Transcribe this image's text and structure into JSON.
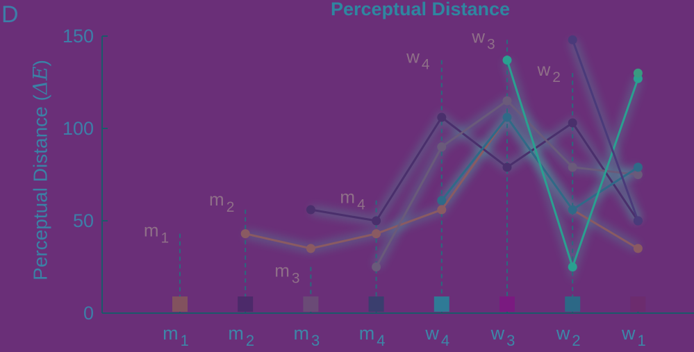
{
  "panel_letter": "D",
  "chart_data": {
    "type": "line",
    "title": "Perceptual Distance",
    "ylabel": "Perceptual Distance (ΔE)",
    "xlabel": "",
    "ylim": [
      0,
      150
    ],
    "yticks": [
      0,
      50,
      100,
      150
    ],
    "categories": [
      {
        "base": "m",
        "sub": "1"
      },
      {
        "base": "m",
        "sub": "2"
      },
      {
        "base": "m",
        "sub": "3"
      },
      {
        "base": "m",
        "sub": "4"
      },
      {
        "base": "w",
        "sub": "4"
      },
      {
        "base": "w",
        "sub": "3"
      },
      {
        "base": "w",
        "sub": "2"
      },
      {
        "base": "w",
        "sub": "1"
      }
    ],
    "category_marker_colors": [
      "#82525e",
      "#4c2a6a",
      "#6a4a76",
      "#3a3e6e",
      "#2f7a96",
      "#7a1a80",
      "#2c6886",
      "#6c2c6e"
    ],
    "series": [
      {
        "start": "m1",
        "color": "#8a5a62",
        "values": [
          null,
          43,
          35,
          43,
          56,
          106,
          56,
          35
        ]
      },
      {
        "start": "m2",
        "color": "#4a2f6c",
        "values": [
          null,
          null,
          56,
          50,
          106,
          79,
          103,
          50
        ]
      },
      {
        "start": "m3",
        "color": "#6a5a7a",
        "values": [
          null,
          null,
          null,
          25,
          90,
          115,
          79,
          75
        ]
      },
      {
        "start": "m4",
        "color": "#2f6a88",
        "values": [
          null,
          null,
          null,
          null,
          61,
          106,
          56,
          79
        ]
      },
      {
        "start": "w4",
        "color": "#2aa090",
        "values": [
          null,
          null,
          null,
          null,
          null,
          137,
          25,
          127
        ]
      },
      {
        "start": "w3",
        "color": "#4a3a7a",
        "values": [
          null,
          null,
          null,
          null,
          null,
          null,
          148,
          50
        ]
      },
      {
        "start": "w2",
        "color": "#3a9a80",
        "values": [
          null,
          null,
          null,
          null,
          null,
          null,
          null,
          130
        ]
      }
    ],
    "point_labels": [
      {
        "category": "m1",
        "base": "m",
        "sub": "1",
        "value": 43
      },
      {
        "category": "m2",
        "base": "m",
        "sub": "2",
        "value": 56
      },
      {
        "category": "m3",
        "base": "m",
        "sub": "3",
        "value": 25
      },
      {
        "category": "m4",
        "base": "m",
        "sub": "4",
        "value": 61
      },
      {
        "category": "w4",
        "base": "w",
        "sub": "4",
        "value": 137
      },
      {
        "category": "w3",
        "base": "w",
        "sub": "3",
        "value": 148
      },
      {
        "category": "w2",
        "base": "w",
        "sub": "2",
        "value": 130
      }
    ],
    "grid": false,
    "legend": "none"
  }
}
